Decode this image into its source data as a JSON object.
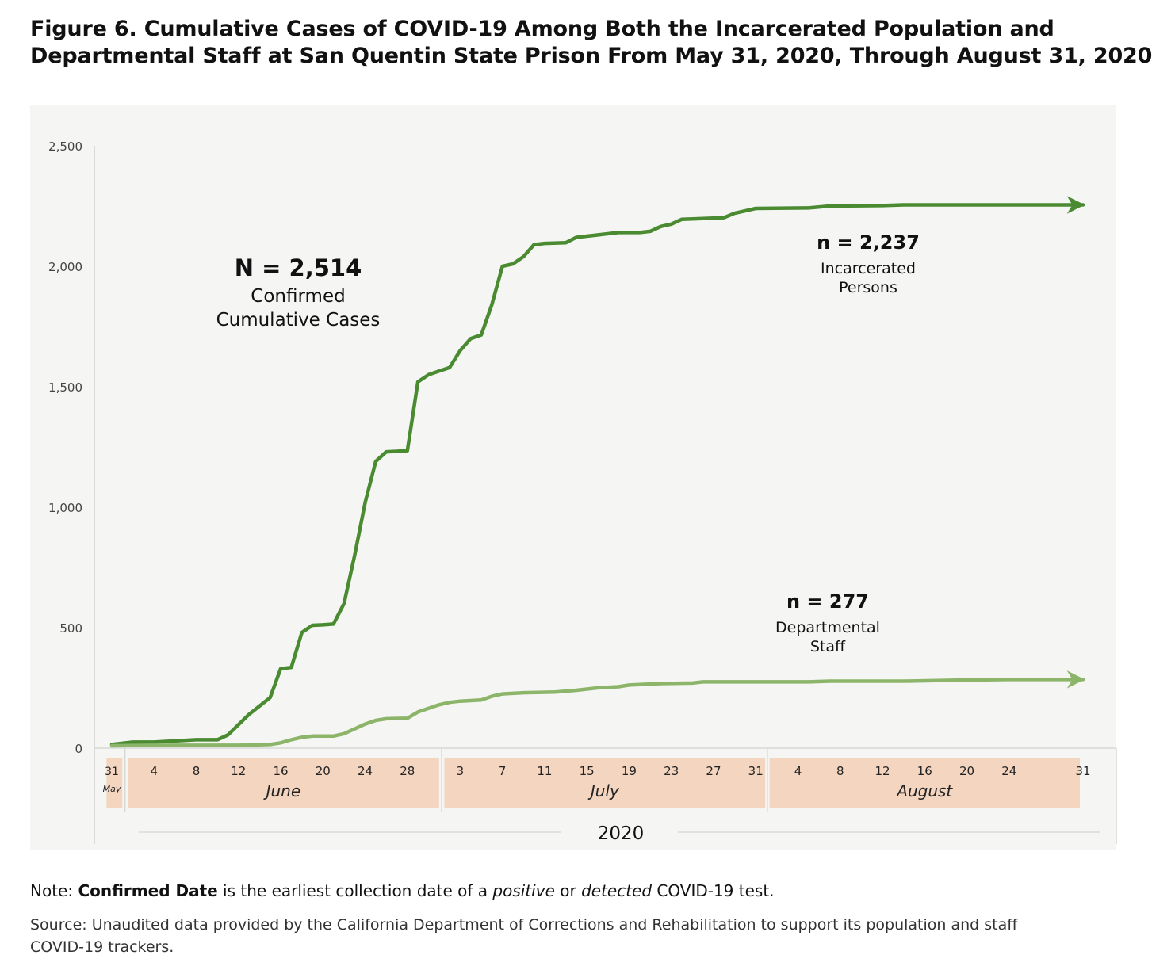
{
  "figure": {
    "title_line1": "Figure 6. Cumulative Cases of COVID-19 Among Both the Incarcerated Population and",
    "title_line2": "Departmental Staff at San Quentin State Prison From May 31, 2020, Through August 31, 2020"
  },
  "annotations": {
    "total": "N = 2,514",
    "total_label_1": "Confirmed",
    "total_label_2": "Cumulative Cases",
    "inc_n": "n = 2,237",
    "inc_label_1": "Incarcerated",
    "inc_label_2": "Persons",
    "staff_n": "n = 277",
    "staff_label_1": "Departmental",
    "staff_label_2": "Staff"
  },
  "note": {
    "prefix": "Note: ",
    "bold": "Confirmed Date",
    "mid1": " is the earliest collection date of a ",
    "italic1": "positive",
    "mid2": " or ",
    "italic2": "detected",
    "suffix": " COVID-19 test."
  },
  "source": "Source: Unaudited data provided by the California Department of Corrections and Rehabilitation to support its population and staff COVID-19 trackers.",
  "chart_data": {
    "type": "line",
    "title": "Figure 6. Cumulative Cases of COVID-19 Among Both the Incarcerated Population and Departmental Staff at San Quentin State Prison From May 31, 2020, Through August 31, 2020",
    "xlabel": "2020",
    "ylabel": "",
    "ylim": [
      0,
      2500
    ],
    "yticks": [
      0,
      500,
      1000,
      1500,
      2000,
      2500
    ],
    "ytick_labels": [
      "0",
      "500",
      "1,000",
      "1,500",
      "2,000",
      "2,500"
    ],
    "xlim": [
      0,
      92
    ],
    "x_unit": "days since May 31, 2020",
    "month_bands": [
      {
        "label": "May",
        "start": -0.5,
        "end": 1.0,
        "ticks": [
          {
            "day": 0,
            "label": "31"
          }
        ]
      },
      {
        "label": "June",
        "start": 1.5,
        "end": 31.0,
        "ticks": [
          {
            "day": 4,
            "label": "4"
          },
          {
            "day": 8,
            "label": "8"
          },
          {
            "day": 12,
            "label": "12"
          },
          {
            "day": 16,
            "label": "16"
          },
          {
            "day": 20,
            "label": "20"
          },
          {
            "day": 24,
            "label": "24"
          },
          {
            "day": 28,
            "label": "28"
          }
        ]
      },
      {
        "label": "July",
        "start": 31.5,
        "end": 61.9,
        "ticks": [
          {
            "day": 33,
            "label": "3"
          },
          {
            "day": 37,
            "label": "7"
          },
          {
            "day": 41,
            "label": "11"
          },
          {
            "day": 45,
            "label": "15"
          },
          {
            "day": 49,
            "label": "19"
          },
          {
            "day": 53,
            "label": "23"
          },
          {
            "day": 57,
            "label": "27"
          },
          {
            "day": 61,
            "label": "31"
          }
        ]
      },
      {
        "label": "August",
        "start": 62.3,
        "end": 91.7,
        "ticks": [
          {
            "day": 65,
            "label": "4"
          },
          {
            "day": 69,
            "label": "8"
          },
          {
            "day": 73,
            "label": "12"
          },
          {
            "day": 77,
            "label": "16"
          },
          {
            "day": 81,
            "label": "20"
          },
          {
            "day": 85,
            "label": "24"
          },
          {
            "day": 92,
            "label": "31"
          }
        ]
      }
    ],
    "year_label": "2020",
    "series": [
      {
        "name": "Incarcerated Persons",
        "color": "#4a8a30",
        "points": [
          [
            0,
            15
          ],
          [
            1,
            20
          ],
          [
            2,
            25
          ],
          [
            4,
            25
          ],
          [
            6,
            30
          ],
          [
            8,
            35
          ],
          [
            10,
            35
          ],
          [
            11,
            55
          ],
          [
            13,
            140
          ],
          [
            15,
            210
          ],
          [
            16,
            330
          ],
          [
            17,
            335
          ],
          [
            18,
            480
          ],
          [
            19,
            510
          ],
          [
            20,
            512
          ],
          [
            21,
            515
          ],
          [
            22,
            600
          ],
          [
            23,
            800
          ],
          [
            24,
            1020
          ],
          [
            25,
            1190
          ],
          [
            26,
            1230
          ],
          [
            27,
            1232
          ],
          [
            28,
            1235
          ],
          [
            29,
            1520
          ],
          [
            30,
            1550
          ],
          [
            31,
            1565
          ],
          [
            32,
            1580
          ],
          [
            33,
            1650
          ],
          [
            34,
            1700
          ],
          [
            35,
            1715
          ],
          [
            36,
            1840
          ],
          [
            37,
            2000
          ],
          [
            38,
            2010
          ],
          [
            39,
            2040
          ],
          [
            40,
            2090
          ],
          [
            41,
            2095
          ],
          [
            43,
            2098
          ],
          [
            44,
            2120
          ],
          [
            46,
            2130
          ],
          [
            48,
            2140
          ],
          [
            50,
            2140
          ],
          [
            51,
            2145
          ],
          [
            52,
            2165
          ],
          [
            53,
            2175
          ],
          [
            54,
            2195
          ],
          [
            57,
            2200
          ],
          [
            58,
            2202
          ],
          [
            59,
            2220
          ],
          [
            60,
            2230
          ],
          [
            61,
            2240
          ],
          [
            66,
            2242
          ],
          [
            68,
            2250
          ],
          [
            73,
            2252
          ],
          [
            75,
            2255
          ],
          [
            92,
            2255
          ]
        ]
      },
      {
        "name": "Departmental Staff",
        "color": "#8db56a",
        "points": [
          [
            0,
            10
          ],
          [
            4,
            12
          ],
          [
            8,
            12
          ],
          [
            12,
            12
          ],
          [
            15,
            15
          ],
          [
            16,
            22
          ],
          [
            17,
            35
          ],
          [
            18,
            45
          ],
          [
            19,
            50
          ],
          [
            21,
            50
          ],
          [
            22,
            60
          ],
          [
            23,
            80
          ],
          [
            24,
            100
          ],
          [
            25,
            115
          ],
          [
            26,
            122
          ],
          [
            28,
            124
          ],
          [
            29,
            150
          ],
          [
            30,
            165
          ],
          [
            31,
            180
          ],
          [
            32,
            190
          ],
          [
            33,
            195
          ],
          [
            35,
            200
          ],
          [
            36,
            215
          ],
          [
            37,
            225
          ],
          [
            39,
            230
          ],
          [
            42,
            233
          ],
          [
            44,
            240
          ],
          [
            46,
            250
          ],
          [
            48,
            255
          ],
          [
            49,
            262
          ],
          [
            52,
            268
          ],
          [
            55,
            270
          ],
          [
            56,
            275
          ],
          [
            62,
            275
          ],
          [
            66,
            275
          ],
          [
            68,
            278
          ],
          [
            75,
            278
          ],
          [
            80,
            282
          ],
          [
            85,
            285
          ],
          [
            92,
            285
          ]
        ]
      }
    ]
  }
}
